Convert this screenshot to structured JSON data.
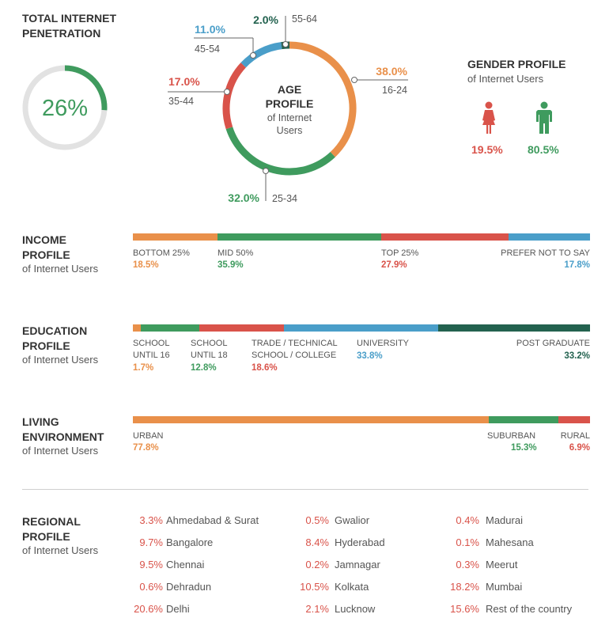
{
  "colors": {
    "orange": "#e9904a",
    "green": "#3f9b5e",
    "red": "#d9534a",
    "blue": "#4a9ec9",
    "dark_green": "#23624f",
    "gray": "#e2e2e2"
  },
  "penetration": {
    "title_line1": "TOTAL INTERNET",
    "title_line2": "PENETRATION",
    "value": "26%",
    "fraction": 0.26
  },
  "age": {
    "center_line1": "AGE",
    "center_line2": "PROFILE",
    "center_line3": "of Internet",
    "center_line4": "Users"
  },
  "gender": {
    "title": "GENDER PROFILE",
    "subtitle": "of Internet Users",
    "female_value": "19.5%",
    "male_value": "80.5%",
    "female_icon": "female-icon",
    "male_icon": "male-icon"
  },
  "income": {
    "title_line1": "INCOME",
    "title_line2": "PROFILE",
    "subtitle": "of Internet Users",
    "segments": [
      {
        "label": "BOTTOM 25%",
        "value": "18.5%"
      },
      {
        "label": "MID 50%",
        "value": "35.9%"
      },
      {
        "label": "TOP 25%",
        "value": "27.9%"
      },
      {
        "label": "PREFER NOT TO SAY",
        "value": "17.8%"
      }
    ]
  },
  "education": {
    "title_line1": "EDUCATION",
    "title_line2": "PROFILE",
    "subtitle": "of Internet Users",
    "segments": [
      {
        "label1": "SCHOOL",
        "label2": "UNTIL 16",
        "value": "1.7%"
      },
      {
        "label1": "SCHOOL",
        "label2": "UNTIL 18",
        "value": "12.8%"
      },
      {
        "label1": "TRADE / TECHNICAL",
        "label2": "SCHOOL / COLLEGE",
        "value": "18.6%"
      },
      {
        "label1": "UNIVERSITY",
        "label2": "",
        "value": "33.8%"
      },
      {
        "label1": "POST GRADUATE",
        "label2": "",
        "value": "33.2%"
      }
    ]
  },
  "living": {
    "title_line1": "LIVING",
    "title_line2": "ENVIRONMENT",
    "subtitle": "of Internet Users",
    "segments": [
      {
        "label": "URBAN",
        "value": "77.8%"
      },
      {
        "label": "SUBURBAN",
        "value": "15.3%"
      },
      {
        "label": "RURAL",
        "value": "6.9%"
      }
    ]
  },
  "regional": {
    "title_line1": "REGIONAL",
    "title_line2": "PROFILE",
    "subtitle": "of Internet Users",
    "col1": [
      {
        "pct": "3.3%",
        "name": "Ahmedabad & Surat"
      },
      {
        "pct": "9.7%",
        "name": "Bangalore"
      },
      {
        "pct": "9.5%",
        "name": "Chennai"
      },
      {
        "pct": "0.6%",
        "name": "Dehradun"
      },
      {
        "pct": "20.6%",
        "name": "Delhi"
      }
    ],
    "col2": [
      {
        "pct": "0.5%",
        "name": "Gwalior"
      },
      {
        "pct": "8.4%",
        "name": "Hyderabad"
      },
      {
        "pct": "0.2%",
        "name": "Jamnagar"
      },
      {
        "pct": "10.5%",
        "name": "Kolkata"
      },
      {
        "pct": "2.1%",
        "name": "Lucknow"
      }
    ],
    "col3": [
      {
        "pct": "0.4%",
        "name": "Madurai"
      },
      {
        "pct": "0.1%",
        "name": "Mahesana"
      },
      {
        "pct": "0.3%",
        "name": "Meerut"
      },
      {
        "pct": "18.2%",
        "name": "Mumbai"
      },
      {
        "pct": "15.6%",
        "name": "Rest of the country"
      }
    ]
  },
  "chart_data": [
    {
      "type": "pie",
      "categories": [
        "penetration",
        "remaining"
      ],
      "values": [
        26,
        74
      ]
    },
    {
      "type": "pie",
      "categories": [
        "16-24",
        "25-34",
        "35-44",
        "45-54",
        "55-64"
      ],
      "values": [
        38.0,
        32.0,
        17.0,
        11.0,
        2.0
      ],
      "labels": [
        "38.0%",
        "32.0%",
        "17.0%",
        "11.0%",
        "2.0%"
      ]
    },
    {
      "type": "bar",
      "categories": [
        "BOTTOM 25%",
        "MID 50%",
        "TOP 25%",
        "PREFER NOT TO SAY"
      ],
      "values": [
        18.5,
        35.9,
        27.9,
        17.8
      ]
    },
    {
      "type": "bar",
      "categories": [
        "SCHOOL UNTIL 16",
        "SCHOOL UNTIL 18",
        "TRADE / TECHNICAL SCHOOL / COLLEGE",
        "UNIVERSITY",
        "POST GRADUATE"
      ],
      "values": [
        1.7,
        12.8,
        18.6,
        33.8,
        33.2
      ]
    },
    {
      "type": "bar",
      "categories": [
        "URBAN",
        "SUBURBAN",
        "RURAL"
      ],
      "values": [
        77.8,
        15.3,
        6.9
      ]
    }
  ]
}
